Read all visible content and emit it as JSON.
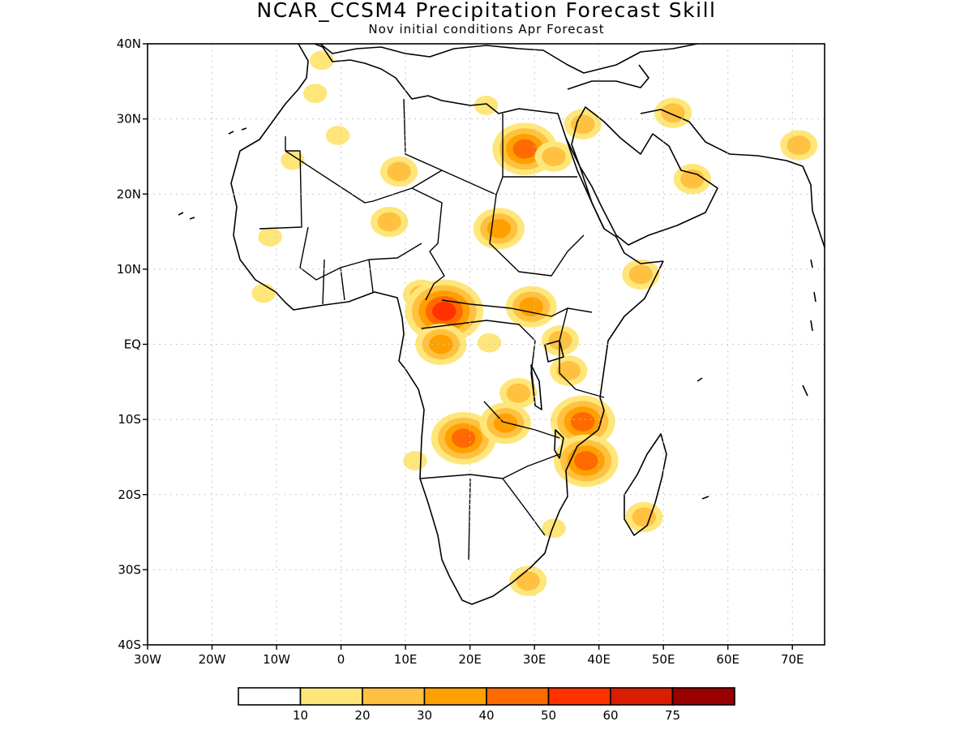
{
  "title": "NCAR_CCSM4 Precipitation Forecast Skill",
  "subtitle": "Nov initial conditions  Apr Forecast",
  "map": {
    "lon_range": [
      -30,
      75
    ],
    "lat_range": [
      -40,
      40
    ],
    "grid": true,
    "lat_ticks": [
      {
        "value": 40,
        "label": "40N"
      },
      {
        "value": 30,
        "label": "30N"
      },
      {
        "value": 20,
        "label": "20N"
      },
      {
        "value": 10,
        "label": "10N"
      },
      {
        "value": 0,
        "label": "EQ"
      },
      {
        "value": -10,
        "label": "10S"
      },
      {
        "value": -20,
        "label": "20S"
      },
      {
        "value": -30,
        "label": "30S"
      },
      {
        "value": -40,
        "label": "40S"
      }
    ],
    "lon_ticks": [
      {
        "value": -30,
        "label": "30W"
      },
      {
        "value": -20,
        "label": "20W"
      },
      {
        "value": -10,
        "label": "10W"
      },
      {
        "value": 0,
        "label": "0"
      },
      {
        "value": 10,
        "label": "10E"
      },
      {
        "value": 20,
        "label": "20E"
      },
      {
        "value": 30,
        "label": "30E"
      },
      {
        "value": 40,
        "label": "40E"
      },
      {
        "value": 50,
        "label": "50E"
      },
      {
        "value": 60,
        "label": "60E"
      },
      {
        "value": 70,
        "label": "70E"
      }
    ]
  },
  "legend": {
    "colors": [
      "#ffffff",
      "#ffe67a",
      "#ffc13f",
      "#ffa000",
      "#ff6a00",
      "#ff3200",
      "#d91e00",
      "#9a0000"
    ],
    "labels": [
      "10",
      "20",
      "30",
      "40",
      "50",
      "60",
      "75"
    ]
  },
  "chart_data": {
    "type": "heatmap",
    "variable": "precipitation forecast skill",
    "levels": [
      10,
      20,
      30,
      40,
      50,
      60,
      75
    ],
    "regions": [
      {
        "lon": -3,
        "lat": 37.8,
        "level": 1
      },
      {
        "lon": -4,
        "lat": 33.4,
        "level": 1
      },
      {
        "lon": -0.5,
        "lat": 27.8,
        "level": 1
      },
      {
        "lon": -7.5,
        "lat": 24.5,
        "level": 1
      },
      {
        "lon": 9,
        "lat": 23,
        "level": 2
      },
      {
        "lon": 7.5,
        "lat": 16.3,
        "level": 2
      },
      {
        "lon": -11,
        "lat": 14.3,
        "level": 1
      },
      {
        "lon": -12,
        "lat": 6.8,
        "level": 1
      },
      {
        "lon": 24.5,
        "lat": 15.4,
        "level": 3
      },
      {
        "lon": 28.5,
        "lat": 26,
        "level": 4
      },
      {
        "lon": 33,
        "lat": 25,
        "level": 2
      },
      {
        "lon": 22.5,
        "lat": 31.8,
        "level": 1
      },
      {
        "lon": 37.5,
        "lat": 29.3,
        "level": 2
      },
      {
        "lon": 51.5,
        "lat": 30.8,
        "level": 2
      },
      {
        "lon": 54.5,
        "lat": 22,
        "level": 2
      },
      {
        "lon": 71,
        "lat": 26.5,
        "level": 2
      },
      {
        "lon": 46.5,
        "lat": 9.3,
        "level": 2
      },
      {
        "lon": 12.5,
        "lat": 6.6,
        "level": 2
      },
      {
        "lon": 16,
        "lat": 4.4,
        "level": 5
      },
      {
        "lon": 29.5,
        "lat": 5,
        "level": 3
      },
      {
        "lon": 15.5,
        "lat": 0,
        "level": 3
      },
      {
        "lon": 34,
        "lat": 0.5,
        "level": 2
      },
      {
        "lon": 35.3,
        "lat": -3.5,
        "level": 2
      },
      {
        "lon": 23,
        "lat": 0.2,
        "level": 1
      },
      {
        "lon": 19,
        "lat": -12.5,
        "level": 4
      },
      {
        "lon": 25.5,
        "lat": -10.5,
        "level": 3
      },
      {
        "lon": 27.5,
        "lat": -6.5,
        "level": 2
      },
      {
        "lon": 37.5,
        "lat": -10.3,
        "level": 4
      },
      {
        "lon": 38,
        "lat": -15.5,
        "level": 4
      },
      {
        "lon": 47,
        "lat": -23,
        "level": 2
      },
      {
        "lon": 33,
        "lat": -24.5,
        "level": 1
      },
      {
        "lon": 29,
        "lat": -31.5,
        "level": 2
      },
      {
        "lon": 11.5,
        "lat": -15.5,
        "level": 1
      }
    ]
  }
}
